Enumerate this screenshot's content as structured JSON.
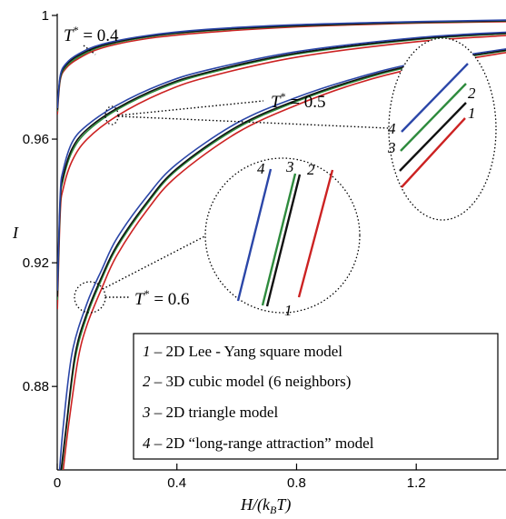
{
  "chart_data": {
    "type": "line",
    "title": "",
    "xlabel": "H/(kBT)",
    "xlabel_parts": {
      "main": "H/(k",
      "sub": "B",
      "tail": "T)"
    },
    "ylabel": "I",
    "xlim": [
      0,
      1.5
    ],
    "ylim": [
      0.853,
      1.0
    ],
    "x_ticks": [
      0,
      0.4,
      0.8,
      1.2
    ],
    "x_tick_labels": [
      "0",
      "0.4",
      "0.8",
      "1.2"
    ],
    "y_ticks": [
      0.88,
      0.92,
      0.96,
      1.0
    ],
    "y_tick_labels": [
      "0.88",
      "0.92",
      "0.96",
      "1"
    ],
    "grid": false,
    "legend_position": "bottom-right",
    "annotations": [
      {
        "prefix": "T",
        "sup": "*",
        "value": " = 0.4"
      },
      {
        "prefix": "T",
        "sup": "*",
        "value": " = 0.5"
      },
      {
        "prefix": "T",
        "sup": "*",
        "value": " = 0.6"
      }
    ],
    "series": [
      {
        "name": "2D Lee - Yang square model",
        "number": "1",
        "color": "#cc2222"
      },
      {
        "name": "3D cubic model (6 neighbors)",
        "number": "2",
        "color": "#2e8b3d"
      },
      {
        "name": "2D triangle model",
        "number": "3",
        "color": "#111111"
      },
      {
        "name": "2D “long-range attraction” model",
        "number": "4",
        "color": "#2b46a8"
      }
    ],
    "families": [
      {
        "temperature": "0.4",
        "curves": [
          {
            "series": "1",
            "x": [
              0.0005,
              0.01,
              0.03,
              0.07,
              0.15,
              0.3,
              0.5,
              0.8,
              1.2,
              1.5
            ],
            "y": [
              0.968,
              0.979,
              0.983,
              0.986,
              0.9895,
              0.9925,
              0.9945,
              0.9963,
              0.9975,
              0.998
            ]
          },
          {
            "series": "2",
            "x": [
              0.0005,
              0.01,
              0.03,
              0.07,
              0.15,
              0.3,
              0.5,
              0.8,
              1.2,
              1.5
            ],
            "y": [
              0.969,
              0.9795,
              0.9835,
              0.9865,
              0.99,
              0.993,
              0.995,
              0.9966,
              0.9977,
              0.9982
            ]
          },
          {
            "series": "3",
            "x": [
              0.0005,
              0.01,
              0.03,
              0.07,
              0.15,
              0.3,
              0.5,
              0.8,
              1.2,
              1.5
            ],
            "y": [
              0.9695,
              0.98,
              0.984,
              0.987,
              0.9903,
              0.9932,
              0.9952,
              0.9967,
              0.9978,
              0.9983
            ]
          },
          {
            "series": "4",
            "x": [
              0.0005,
              0.01,
              0.03,
              0.07,
              0.15,
              0.3,
              0.5,
              0.8,
              1.2,
              1.5
            ],
            "y": [
              0.97,
              0.9805,
              0.9845,
              0.9875,
              0.9907,
              0.9935,
              0.9955,
              0.997,
              0.998,
              0.9985
            ]
          }
        ]
      },
      {
        "temperature": "0.5",
        "curves": [
          {
            "series": "1",
            "x": [
              0.0005,
              0.01,
              0.02,
              0.05,
              0.1,
              0.2,
              0.35,
              0.5,
              0.8,
              1.2,
              1.5
            ],
            "y": [
              0.905,
              0.936,
              0.944,
              0.953,
              0.96,
              0.9675,
              0.975,
              0.98,
              0.9865,
              0.9915,
              0.9935
            ]
          },
          {
            "series": "2",
            "x": [
              0.0005,
              0.01,
              0.02,
              0.05,
              0.1,
              0.2,
              0.35,
              0.5,
              0.8,
              1.2,
              1.5
            ],
            "y": [
              0.908,
              0.939,
              0.947,
              0.956,
              0.9625,
              0.9695,
              0.9765,
              0.9812,
              0.9875,
              0.9922,
              0.9941
            ]
          },
          {
            "series": "3",
            "x": [
              0.0005,
              0.01,
              0.02,
              0.05,
              0.1,
              0.2,
              0.35,
              0.5,
              0.8,
              1.2,
              1.5
            ],
            "y": [
              0.909,
              0.94,
              0.948,
              0.957,
              0.9632,
              0.97,
              0.977,
              0.9816,
              0.9878,
              0.9924,
              0.9943
            ]
          },
          {
            "series": "4",
            "x": [
              0.0005,
              0.01,
              0.02,
              0.05,
              0.1,
              0.2,
              0.35,
              0.5,
              0.8,
              1.2,
              1.5
            ],
            "y": [
              0.911,
              0.942,
              0.95,
              0.959,
              0.9645,
              0.971,
              0.9778,
              0.9823,
              0.9883,
              0.9928,
              0.9946
            ]
          }
        ]
      },
      {
        "temperature": "0.6",
        "curves": [
          {
            "series": "1",
            "x": [
              0.02,
              0.04,
              0.07,
              0.1,
              0.15,
              0.2,
              0.3,
              0.4,
              0.6,
              0.8,
              1.0,
              1.2,
              1.5
            ],
            "y": [
              0.853,
              0.869,
              0.889,
              0.9,
              0.912,
              0.9225,
              0.937,
              0.948,
              0.962,
              0.971,
              0.978,
              0.983,
              0.988
            ]
          },
          {
            "series": "2",
            "x": [
              0.015,
              0.03,
              0.06,
              0.1,
              0.15,
              0.2,
              0.3,
              0.4,
              0.6,
              0.8,
              1.0,
              1.2,
              1.5
            ],
            "y": [
              0.853,
              0.866,
              0.889,
              0.903,
              0.915,
              0.925,
              0.939,
              0.95,
              0.9635,
              0.9722,
              0.9788,
              0.9838,
              0.9886
            ]
          },
          {
            "series": "3",
            "x": [
              0.013,
              0.03,
              0.06,
              0.1,
              0.15,
              0.2,
              0.3,
              0.4,
              0.6,
              0.8,
              1.0,
              1.2,
              1.5
            ],
            "y": [
              0.853,
              0.867,
              0.8905,
              0.904,
              0.9158,
              0.9257,
              0.9396,
              0.9505,
              0.964,
              0.9726,
              0.9792,
              0.9841,
              0.9888
            ]
          },
          {
            "series": "4",
            "x": [
              0.008,
              0.02,
              0.05,
              0.1,
              0.15,
              0.2,
              0.3,
              0.4,
              0.6,
              0.8,
              1.0,
              1.2,
              1.5
            ],
            "y": [
              0.853,
              0.867,
              0.891,
              0.907,
              0.918,
              0.928,
              0.9415,
              0.952,
              0.9652,
              0.9735,
              0.9798,
              0.9846,
              0.9892
            ]
          }
        ]
      }
    ],
    "insets": [
      {
        "target": "T* = 0.5",
        "labels": [
          "4",
          "3",
          "2",
          "1"
        ]
      },
      {
        "target": "T* = 0.6",
        "labels": [
          "4",
          "3",
          "2",
          "1"
        ]
      }
    ]
  }
}
